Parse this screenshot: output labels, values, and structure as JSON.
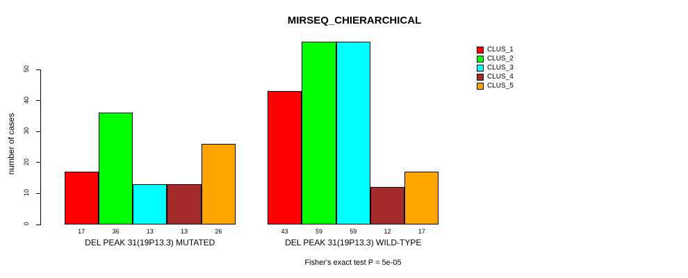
{
  "chart_data": {
    "type": "bar",
    "title": "MIRSEQ_CHIERARCHICAL",
    "ylabel": "number of cases",
    "xlabel": "",
    "footer": "Fisher's exact test P = 5e-05",
    "grid": false,
    "legend_position": "right",
    "y_ticks": [
      0,
      10,
      20,
      30,
      40,
      50
    ],
    "ylim": [
      0,
      59
    ],
    "bar_value_labels_shown": true,
    "categories": [
      "DEL PEAK 31(19P13.3) MUTATED",
      "DEL PEAK 31(19P13.3) WILD-TYPE"
    ],
    "series": [
      {
        "name": "CLUS_1",
        "color": "#FF0000",
        "values": [
          17,
          43
        ]
      },
      {
        "name": "CLUS_2",
        "color": "#00FF00",
        "values": [
          36,
          59
        ]
      },
      {
        "name": "CLUS_3",
        "color": "#00FFFF",
        "values": [
          13,
          59
        ]
      },
      {
        "name": "CLUS_4",
        "color": "#A52A2A",
        "values": [
          13,
          12
        ]
      },
      {
        "name": "CLUS_5",
        "color": "#FFA500",
        "values": [
          26,
          17
        ]
      }
    ]
  },
  "colors": {
    "background": "#FFFFFF",
    "axis": "#000000",
    "text": "#000000",
    "bar_border": "#000000"
  }
}
